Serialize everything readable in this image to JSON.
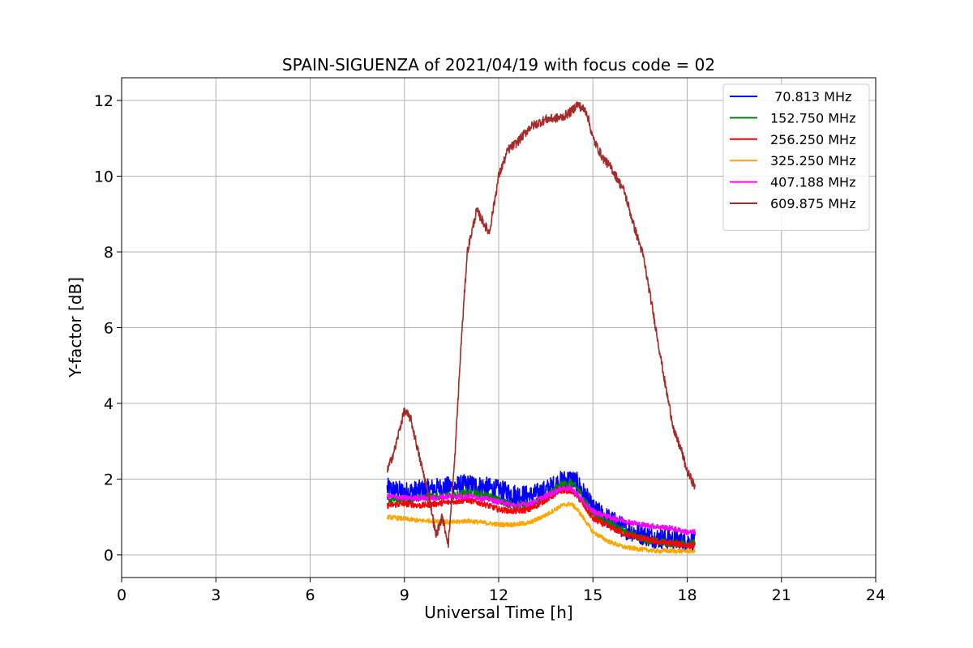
{
  "chart_data": {
    "type": "line",
    "title": "SPAIN-SIGUENZA of 2021/04/19 with focus code = 02",
    "xlabel": "Universal Time [h]",
    "ylabel": "Y-factor [dB]",
    "xlim": [
      0,
      24
    ],
    "ylim": [
      -0.6,
      12.6
    ],
    "xticks": [
      0,
      3,
      6,
      9,
      12,
      15,
      18,
      21,
      24
    ],
    "yticks": [
      0,
      2,
      4,
      6,
      8,
      10,
      12
    ],
    "xtick_labels": [
      "0",
      "3",
      "6",
      "9",
      "12",
      "15",
      "18",
      "21",
      "24"
    ],
    "ytick_labels": [
      "0",
      "2",
      "4",
      "6",
      "8",
      "10",
      "12"
    ],
    "grid": true,
    "legend_position": "top-right",
    "series": [
      {
        "name": " 70.813 MHz",
        "color": "#0000ff",
        "x": [
          8.45,
          9.0,
          9.5,
          10.0,
          10.5,
          11.0,
          11.5,
          12.0,
          12.5,
          13.0,
          13.5,
          14.0,
          14.3,
          14.5,
          14.8,
          15.0,
          15.5,
          16.0,
          16.5,
          17.0,
          17.5,
          18.0,
          18.25
        ],
        "y": [
          1.75,
          1.65,
          1.7,
          1.75,
          1.8,
          1.85,
          1.8,
          1.7,
          1.6,
          1.55,
          1.7,
          1.95,
          2.0,
          1.9,
          1.5,
          1.2,
          0.95,
          0.7,
          0.55,
          0.45,
          0.4,
          0.35,
          0.35
        ],
        "noise": 0.28
      },
      {
        "name": "152.750 MHz",
        "color": "#008000",
        "x": [
          8.45,
          9.0,
          9.5,
          10.0,
          10.5,
          11.0,
          11.5,
          12.0,
          12.5,
          13.0,
          13.5,
          14.0,
          14.3,
          14.5,
          14.8,
          15.0,
          15.5,
          16.0,
          16.5,
          17.0,
          17.5,
          18.0,
          18.25
        ],
        "y": [
          1.45,
          1.45,
          1.5,
          1.55,
          1.55,
          1.65,
          1.6,
          1.45,
          1.3,
          1.3,
          1.55,
          1.85,
          1.9,
          1.75,
          1.35,
          1.1,
          0.85,
          0.6,
          0.45,
          0.35,
          0.3,
          0.3,
          0.3
        ],
        "noise": 0.1
      },
      {
        "name": "256.250 MHz",
        "color": "#ff0000",
        "x": [
          8.45,
          9.0,
          9.5,
          10.0,
          10.5,
          11.0,
          11.5,
          12.0,
          12.5,
          13.0,
          13.5,
          14.0,
          14.3,
          14.5,
          14.8,
          15.0,
          15.5,
          16.0,
          16.5,
          17.0,
          17.5,
          18.0,
          18.25
        ],
        "y": [
          1.3,
          1.35,
          1.3,
          1.35,
          1.4,
          1.45,
          1.35,
          1.2,
          1.15,
          1.2,
          1.45,
          1.7,
          1.7,
          1.55,
          1.2,
          0.95,
          0.75,
          0.55,
          0.45,
          0.35,
          0.3,
          0.25,
          0.25
        ],
        "noise": 0.08
      },
      {
        "name": "325.250 MHz",
        "color": "#ffa500",
        "x": [
          8.45,
          9.0,
          9.5,
          10.0,
          10.5,
          11.0,
          11.5,
          12.0,
          12.5,
          13.0,
          13.5,
          14.0,
          14.3,
          14.5,
          14.8,
          15.0,
          15.5,
          16.0,
          16.5,
          17.0,
          17.5,
          18.0,
          18.25
        ],
        "y": [
          1.0,
          0.95,
          0.9,
          0.9,
          0.85,
          0.9,
          0.85,
          0.8,
          0.8,
          0.85,
          1.05,
          1.3,
          1.35,
          1.2,
          0.85,
          0.6,
          0.35,
          0.2,
          0.15,
          0.1,
          0.1,
          0.1,
          0.1
        ],
        "noise": 0.06
      },
      {
        "name": "407.188 MHz",
        "color": "#ff00ff",
        "x": [
          8.45,
          9.0,
          9.5,
          10.0,
          10.5,
          11.0,
          11.5,
          12.0,
          12.5,
          13.0,
          13.5,
          14.0,
          14.3,
          14.5,
          14.8,
          15.0,
          15.5,
          16.0,
          16.5,
          17.0,
          17.5,
          18.0,
          18.25
        ],
        "y": [
          1.55,
          1.5,
          1.5,
          1.5,
          1.55,
          1.55,
          1.5,
          1.4,
          1.3,
          1.35,
          1.55,
          1.75,
          1.75,
          1.6,
          1.3,
          1.15,
          1.0,
          0.9,
          0.8,
          0.75,
          0.7,
          0.6,
          0.6
        ],
        "noise": 0.07
      },
      {
        "name": "609.875 MHz",
        "color": "#a52a2a",
        "x": [
          8.45,
          8.7,
          8.9,
          9.0,
          9.2,
          9.5,
          9.8,
          10.0,
          10.2,
          10.4,
          10.6,
          10.8,
          11.0,
          11.3,
          11.5,
          11.7,
          12.0,
          12.3,
          12.6,
          13.0,
          13.5,
          14.0,
          14.3,
          14.5,
          14.8,
          15.0,
          15.3,
          15.6,
          16.0,
          16.3,
          16.6,
          17.0,
          17.3,
          17.6,
          17.8,
          18.0,
          18.25
        ],
        "y": [
          2.2,
          2.8,
          3.5,
          3.8,
          3.6,
          2.5,
          1.5,
          0.5,
          1.0,
          0.3,
          2.5,
          5.5,
          8.0,
          9.1,
          8.8,
          8.5,
          10.0,
          10.7,
          10.9,
          11.3,
          11.5,
          11.55,
          11.7,
          11.9,
          11.7,
          11.0,
          10.5,
          10.2,
          9.6,
          8.7,
          7.9,
          6.0,
          4.5,
          3.2,
          2.8,
          2.2,
          1.8
        ],
        "noise": 0.12
      }
    ]
  }
}
